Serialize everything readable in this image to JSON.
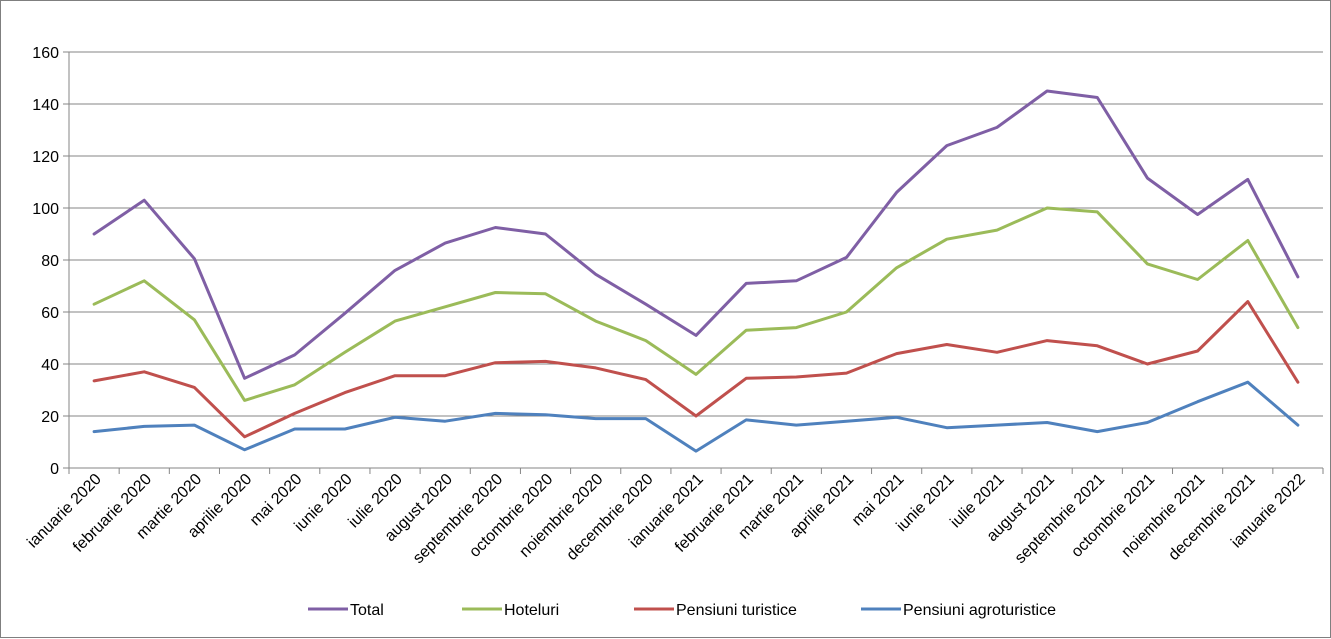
{
  "chart_data": {
    "type": "line",
    "categories": [
      "ianuarie 2020",
      "februarie 2020",
      "martie 2020",
      "aprilie 2020",
      "mai 2020",
      "iunie 2020",
      "iulie 2020",
      "august 2020",
      "septembrie 2020",
      "octombrie 2020",
      "noiembrie 2020",
      "decembrie 2020",
      "ianuarie 2021",
      "februarie 2021",
      "martie 2021",
      "aprilie 2021",
      "mai 2021",
      "iunie 2021",
      "iulie 2021",
      "august 2021",
      "septembrie 2021",
      "octombrie 2021",
      "noiembrie 2021",
      "decembrie 2021",
      "ianuarie 2022"
    ],
    "series": [
      {
        "name": "Total",
        "color": "#7f5fa5",
        "values": [
          90,
          103,
          80.5,
          34.5,
          43.5,
          59.5,
          76,
          86.5,
          92.5,
          90,
          74.5,
          63,
          51,
          71,
          72,
          81,
          106,
          124,
          131,
          145,
          142.5,
          111.5,
          97.5,
          111,
          73.5
        ]
      },
      {
        "name": "Hoteluri",
        "color": "#9bbb59",
        "values": [
          63,
          72,
          57,
          26,
          32,
          44.5,
          56.5,
          62,
          67.5,
          67,
          56.5,
          49,
          36,
          53,
          54,
          60,
          77,
          88,
          91.5,
          100,
          98.5,
          78.5,
          72.5,
          87.5,
          54
        ]
      },
      {
        "name": "Pensiuni turistice",
        "color": "#c0504d",
        "values": [
          33.5,
          37,
          31,
          12,
          21,
          29,
          35.5,
          35.5,
          40.5,
          41,
          38.5,
          34,
          20,
          34.5,
          35,
          36.5,
          44,
          47.5,
          44.5,
          49,
          47,
          40,
          45,
          64,
          33
        ]
      },
      {
        "name": "Pensiuni agroturistice",
        "color": "#4f81bd",
        "values": [
          14,
          16,
          16.5,
          7,
          15,
          15,
          19.5,
          18,
          21,
          20.5,
          19,
          19,
          6.5,
          18.5,
          16.5,
          18,
          19.5,
          15.5,
          16.5,
          17.5,
          14,
          17.5,
          25.5,
          33,
          16.5
        ]
      }
    ],
    "y_ticks": [
      "0",
      "20",
      "40",
      "60",
      "80",
      "100",
      "120",
      "140",
      "160"
    ],
    "ylim": [
      0,
      160
    ],
    "grid": true,
    "legend_position": "bottom"
  }
}
